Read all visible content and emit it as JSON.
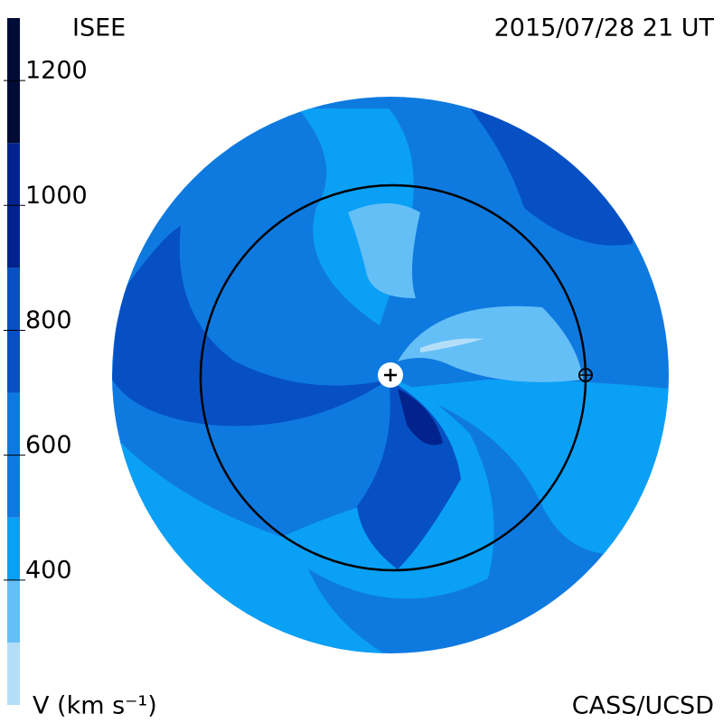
{
  "header": {
    "title": "ISEE",
    "timestamp": "2015/07/28 21 UT",
    "credit": "CASS/UCSD"
  },
  "colorbar": {
    "label": "V (km s⁻¹)",
    "lim": [
      200,
      1300
    ],
    "ticks": [
      400,
      600,
      800,
      1000,
      1200
    ],
    "bands": [
      {
        "from": 200,
        "to": 300,
        "color": "#b4def8"
      },
      {
        "from": 300,
        "to": 400,
        "color": "#64bff6"
      },
      {
        "from": 400,
        "to": 500,
        "color": "#0aa0f6"
      },
      {
        "from": 500,
        "to": 700,
        "color": "#0e7ae0"
      },
      {
        "from": 700,
        "to": 900,
        "color": "#0650c4"
      },
      {
        "from": 900,
        "to": 1100,
        "color": "#02238c"
      },
      {
        "from": 1100,
        "to": 1300,
        "color": "#000b36"
      }
    ]
  }
}
